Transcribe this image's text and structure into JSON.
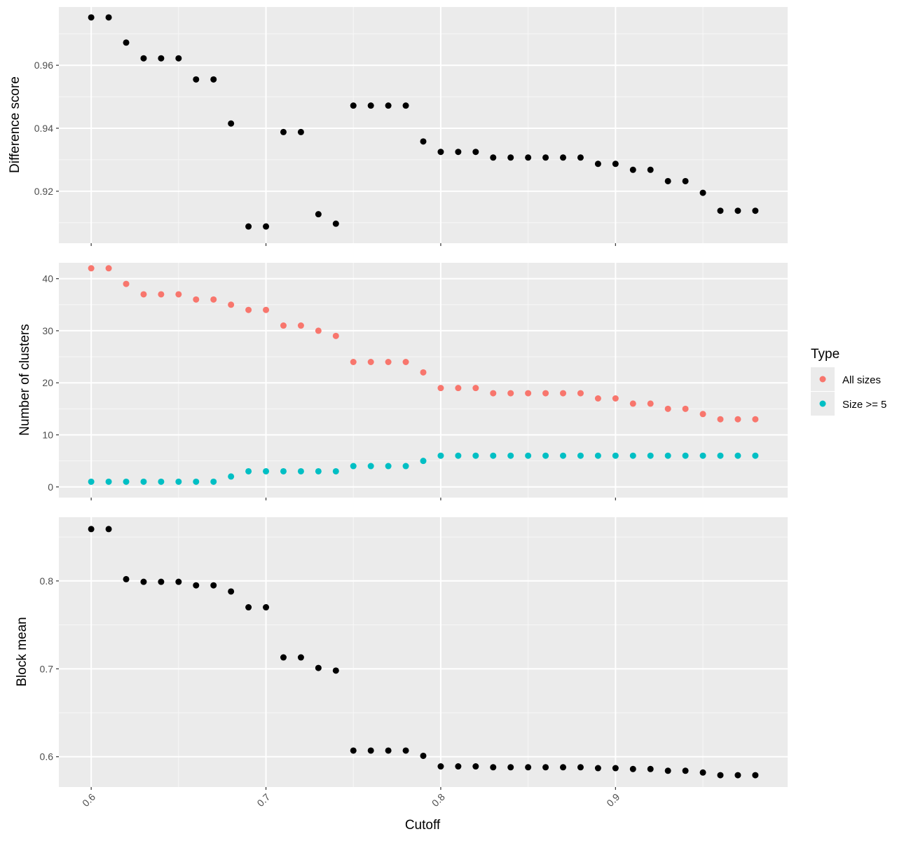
{
  "chart_data": [
    {
      "type": "scatter",
      "title": "",
      "xlabel": "",
      "ylabel": "Difference score",
      "xlim": [
        0.5815,
        0.9985
      ],
      "ylim": [
        0.9035,
        0.9785
      ],
      "y_ticks": [
        0.92,
        0.94,
        0.96
      ],
      "y_tick_labels": [
        "0.92",
        "0.94",
        "0.96"
      ],
      "grid": true,
      "series": [
        {
          "color": "#000000",
          "points": [
            [
              0.6,
              0.9752
            ],
            [
              0.61,
              0.9752
            ],
            [
              0.62,
              0.9672
            ],
            [
              0.63,
              0.9622
            ],
            [
              0.64,
              0.9622
            ],
            [
              0.65,
              0.9622
            ],
            [
              0.66,
              0.9555
            ],
            [
              0.67,
              0.9555
            ],
            [
              0.68,
              0.9415
            ],
            [
              0.69,
              0.9088
            ],
            [
              0.7,
              0.9088
            ],
            [
              0.71,
              0.9388
            ],
            [
              0.72,
              0.9388
            ],
            [
              0.73,
              0.9127
            ],
            [
              0.74,
              0.9097
            ],
            [
              0.75,
              0.9472
            ],
            [
              0.76,
              0.9472
            ],
            [
              0.77,
              0.9472
            ],
            [
              0.78,
              0.9472
            ],
            [
              0.79,
              0.9358
            ],
            [
              0.8,
              0.9325
            ],
            [
              0.81,
              0.9325
            ],
            [
              0.82,
              0.9325
            ],
            [
              0.83,
              0.9307
            ],
            [
              0.84,
              0.9307
            ],
            [
              0.85,
              0.9307
            ],
            [
              0.86,
              0.9307
            ],
            [
              0.87,
              0.9307
            ],
            [
              0.88,
              0.9307
            ],
            [
              0.89,
              0.9287
            ],
            [
              0.9,
              0.9287
            ],
            [
              0.91,
              0.9268
            ],
            [
              0.92,
              0.9268
            ],
            [
              0.93,
              0.9232
            ],
            [
              0.94,
              0.9232
            ],
            [
              0.95,
              0.9195
            ],
            [
              0.96,
              0.9138
            ],
            [
              0.97,
              0.9138
            ],
            [
              0.98,
              0.9138
            ]
          ]
        }
      ]
    },
    {
      "type": "scatter",
      "title": "",
      "xlabel": "",
      "ylabel": "Number of clusters",
      "xlim": [
        0.5815,
        0.9985
      ],
      "ylim": [
        -2.05,
        43.05
      ],
      "y_ticks": [
        0,
        10,
        20,
        30,
        40
      ],
      "y_tick_labels": [
        "0",
        "10",
        "20",
        "30",
        "40"
      ],
      "grid": true,
      "legend": {
        "title": "Type",
        "placement": "right"
      },
      "series": [
        {
          "name": "All sizes",
          "color": "#F8766D",
          "points": [
            [
              0.6,
              42
            ],
            [
              0.61,
              42
            ],
            [
              0.62,
              39
            ],
            [
              0.63,
              37
            ],
            [
              0.64,
              37
            ],
            [
              0.65,
              37
            ],
            [
              0.66,
              36
            ],
            [
              0.67,
              36
            ],
            [
              0.68,
              35
            ],
            [
              0.69,
              34
            ],
            [
              0.7,
              34
            ],
            [
              0.71,
              31
            ],
            [
              0.72,
              31
            ],
            [
              0.73,
              30
            ],
            [
              0.74,
              29
            ],
            [
              0.75,
              24
            ],
            [
              0.76,
              24
            ],
            [
              0.77,
              24
            ],
            [
              0.78,
              24
            ],
            [
              0.79,
              22
            ],
            [
              0.8,
              19
            ],
            [
              0.81,
              19
            ],
            [
              0.82,
              19
            ],
            [
              0.83,
              18
            ],
            [
              0.84,
              18
            ],
            [
              0.85,
              18
            ],
            [
              0.86,
              18
            ],
            [
              0.87,
              18
            ],
            [
              0.88,
              18
            ],
            [
              0.89,
              17
            ],
            [
              0.9,
              17
            ],
            [
              0.91,
              16
            ],
            [
              0.92,
              16
            ],
            [
              0.93,
              15
            ],
            [
              0.94,
              15
            ],
            [
              0.95,
              14
            ],
            [
              0.96,
              13
            ],
            [
              0.97,
              13
            ],
            [
              0.98,
              13
            ]
          ]
        },
        {
          "name": "Size >= 5",
          "color": "#00BFC4",
          "points": [
            [
              0.6,
              1
            ],
            [
              0.61,
              1
            ],
            [
              0.62,
              1
            ],
            [
              0.63,
              1
            ],
            [
              0.64,
              1
            ],
            [
              0.65,
              1
            ],
            [
              0.66,
              1
            ],
            [
              0.67,
              1
            ],
            [
              0.68,
              2
            ],
            [
              0.69,
              3
            ],
            [
              0.7,
              3
            ],
            [
              0.71,
              3
            ],
            [
              0.72,
              3
            ],
            [
              0.73,
              3
            ],
            [
              0.74,
              3
            ],
            [
              0.75,
              4
            ],
            [
              0.76,
              4
            ],
            [
              0.77,
              4
            ],
            [
              0.78,
              4
            ],
            [
              0.79,
              5
            ],
            [
              0.8,
              6
            ],
            [
              0.81,
              6
            ],
            [
              0.82,
              6
            ],
            [
              0.83,
              6
            ],
            [
              0.84,
              6
            ],
            [
              0.85,
              6
            ],
            [
              0.86,
              6
            ],
            [
              0.87,
              6
            ],
            [
              0.88,
              6
            ],
            [
              0.89,
              6
            ],
            [
              0.9,
              6
            ],
            [
              0.91,
              6
            ],
            [
              0.92,
              6
            ],
            [
              0.93,
              6
            ],
            [
              0.94,
              6
            ],
            [
              0.95,
              6
            ],
            [
              0.96,
              6
            ],
            [
              0.97,
              6
            ],
            [
              0.98,
              6
            ]
          ]
        }
      ]
    },
    {
      "type": "scatter",
      "title": "",
      "xlabel": "Cutoff",
      "ylabel": "Block mean",
      "xlim": [
        0.5815,
        0.9985
      ],
      "ylim": [
        0.5655,
        0.8725
      ],
      "y_ticks": [
        0.6,
        0.7,
        0.8
      ],
      "y_tick_labels": [
        "0.6",
        "0.7",
        "0.8"
      ],
      "x_ticks": [
        0.6,
        0.7,
        0.8,
        0.9
      ],
      "x_tick_labels": [
        "0.6",
        "0.7",
        "0.8",
        "0.9"
      ],
      "grid": true,
      "series": [
        {
          "color": "#000000",
          "points": [
            [
              0.6,
              0.859
            ],
            [
              0.61,
              0.859
            ],
            [
              0.62,
              0.802
            ],
            [
              0.63,
              0.799
            ],
            [
              0.64,
              0.799
            ],
            [
              0.65,
              0.799
            ],
            [
              0.66,
              0.795
            ],
            [
              0.67,
              0.795
            ],
            [
              0.68,
              0.788
            ],
            [
              0.69,
              0.77
            ],
            [
              0.7,
              0.77
            ],
            [
              0.71,
              0.713
            ],
            [
              0.72,
              0.713
            ],
            [
              0.73,
              0.701
            ],
            [
              0.74,
              0.698
            ],
            [
              0.75,
              0.607
            ],
            [
              0.76,
              0.607
            ],
            [
              0.77,
              0.607
            ],
            [
              0.78,
              0.607
            ],
            [
              0.79,
              0.601
            ],
            [
              0.8,
              0.589
            ],
            [
              0.81,
              0.589
            ],
            [
              0.82,
              0.589
            ],
            [
              0.83,
              0.588
            ],
            [
              0.84,
              0.588
            ],
            [
              0.85,
              0.588
            ],
            [
              0.86,
              0.588
            ],
            [
              0.87,
              0.588
            ],
            [
              0.88,
              0.588
            ],
            [
              0.89,
              0.587
            ],
            [
              0.9,
              0.587
            ],
            [
              0.91,
              0.586
            ],
            [
              0.92,
              0.586
            ],
            [
              0.93,
              0.584
            ],
            [
              0.94,
              0.584
            ],
            [
              0.95,
              0.582
            ],
            [
              0.96,
              0.579
            ],
            [
              0.97,
              0.579
            ],
            [
              0.98,
              0.579
            ]
          ]
        }
      ]
    }
  ]
}
